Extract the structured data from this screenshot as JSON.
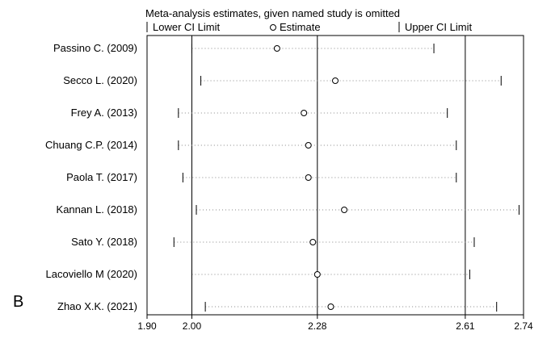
{
  "chart_data": {
    "type": "scatter",
    "title": "Meta-analysis estimates, given named study is omitted",
    "legend": {
      "lower": "Lower CI Limit",
      "estimate": "Estimate",
      "upper": "Upper CI Limit",
      "position": "top"
    },
    "panel_label": "B",
    "xlim": [
      1.9,
      2.74
    ],
    "xticks": [
      "1.90",
      "2.00",
      "2.28",
      "2.61",
      "2.74"
    ],
    "reference_lines": [
      2.0,
      2.28,
      2.61
    ],
    "studies": [
      {
        "label": "Passino C. (2009)",
        "lower": 2.0,
        "estimate": 2.19,
        "upper": 2.54
      },
      {
        "label": "Secco L. (2020)",
        "lower": 2.02,
        "estimate": 2.32,
        "upper": 2.69
      },
      {
        "label": "Frey A. (2013)",
        "lower": 1.97,
        "estimate": 2.25,
        "upper": 2.57
      },
      {
        "label": "Chuang C.P. (2014)",
        "lower": 1.97,
        "estimate": 2.26,
        "upper": 2.59
      },
      {
        "label": "Paola T. (2017)",
        "lower": 1.98,
        "estimate": 2.26,
        "upper": 2.59
      },
      {
        "label": "Kannan L. (2018)",
        "lower": 2.01,
        "estimate": 2.34,
        "upper": 2.73
      },
      {
        "label": "Sato Y. (2018)",
        "lower": 1.96,
        "estimate": 2.27,
        "upper": 2.63
      },
      {
        "label": "Lacoviello M (2020)",
        "lower": 2.0,
        "estimate": 2.28,
        "upper": 2.62
      },
      {
        "label": "Zhao X.K. (2021)",
        "lower": 2.03,
        "estimate": 2.31,
        "upper": 2.68
      }
    ]
  }
}
